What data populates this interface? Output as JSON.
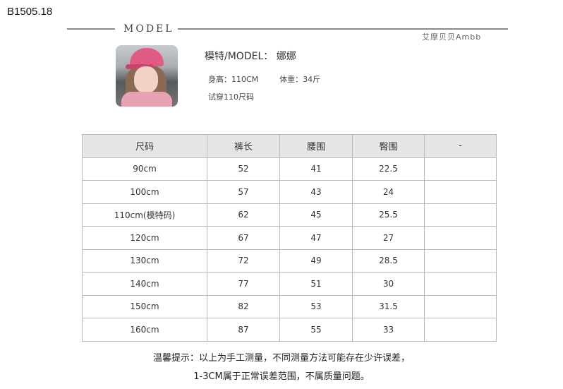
{
  "product_code": "B1505.18",
  "section_title": "MODEL",
  "brand": "艾摩贝贝Ambb",
  "model": {
    "name_label": "模特/MODEL：",
    "name": "娜娜",
    "height": "身高：110CM",
    "weight": "体重：34斤",
    "trial": "试穿110尺码"
  },
  "table": {
    "headers": [
      "尺码",
      "裤长",
      "腰围",
      "臀围",
      "-"
    ],
    "rows": [
      [
        "90cm",
        "52",
        "41",
        "22.5",
        ""
      ],
      [
        "100cm",
        "57",
        "43",
        "24",
        ""
      ],
      [
        "110cm(模特码)",
        "62",
        "45",
        "25.5",
        ""
      ],
      [
        "120cm",
        "67",
        "47",
        "27",
        ""
      ],
      [
        "130cm",
        "72",
        "49",
        "28.5",
        ""
      ],
      [
        "140cm",
        "77",
        "51",
        "30",
        ""
      ],
      [
        "150cm",
        "82",
        "53",
        "31.5",
        ""
      ],
      [
        "160cm",
        "87",
        "55",
        "33",
        ""
      ]
    ]
  },
  "note": {
    "line1": "温馨提示：以上为手工测量，不同测量方法可能存在少许误差，",
    "line2": "1-3CM属于正常误差范围，不属质量问题。"
  }
}
